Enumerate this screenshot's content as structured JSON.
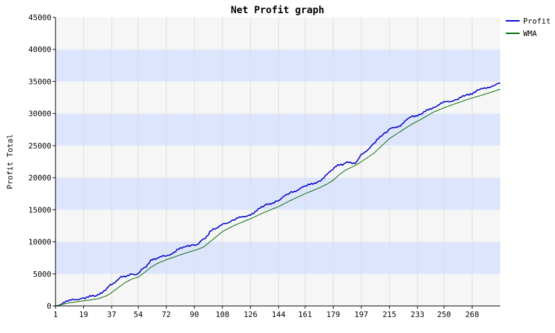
{
  "chart_data": {
    "type": "line",
    "title": "Net Profit graph",
    "xlabel": "",
    "ylabel": "Profit Total",
    "xlim": [
      1,
      286
    ],
    "ylim": [
      0,
      45000
    ],
    "x_ticks": [
      "1",
      "19",
      "37",
      "54",
      "72",
      "90",
      "108",
      "126",
      "144",
      "161",
      "179",
      "197",
      "215",
      "233",
      "250",
      "268"
    ],
    "y_ticks": [
      "0",
      "5000",
      "10000",
      "15000",
      "20000",
      "25000",
      "30000",
      "35000",
      "40000",
      "45000"
    ],
    "grid": true,
    "legend_position": "top-right",
    "series": [
      {
        "name": "Profit",
        "color": "#0000cc",
        "x": [
          1,
          10,
          19,
          28,
          34,
          37,
          42,
          46,
          50,
          54,
          58,
          62,
          66,
          72,
          78,
          85,
          88,
          92,
          96,
          100,
          104,
          108,
          116,
          126,
          135,
          144,
          152,
          161,
          170,
          175,
          179,
          183,
          187,
          193,
          197,
          205,
          212,
          215,
          222,
          229,
          236,
          243,
          250,
          258,
          265,
          272,
          280,
          286
        ],
        "values": [
          0,
          800,
          1300,
          1600,
          2800,
          3400,
          4300,
          4700,
          4900,
          5000,
          6000,
          7000,
          7500,
          7800,
          8500,
          9500,
          9400,
          9600,
          10400,
          11500,
          12200,
          12700,
          13500,
          14300,
          15600,
          16500,
          17700,
          18600,
          19500,
          20400,
          21500,
          22000,
          22300,
          22300,
          23500,
          25300,
          27000,
          27500,
          28200,
          29500,
          30000,
          31000,
          31700,
          32200,
          32900,
          33600,
          34300,
          34700
        ]
      },
      {
        "name": "WMA",
        "color": "#006600",
        "x": [
          1,
          10,
          19,
          28,
          34,
          37,
          42,
          46,
          50,
          54,
          58,
          62,
          66,
          72,
          78,
          85,
          88,
          92,
          96,
          100,
          104,
          108,
          116,
          126,
          135,
          144,
          152,
          161,
          170,
          175,
          179,
          183,
          187,
          193,
          197,
          205,
          212,
          215,
          222,
          229,
          236,
          243,
          250,
          258,
          265,
          272,
          280,
          286
        ],
        "values": [
          0,
          500,
          800,
          1100,
          1600,
          2100,
          3000,
          3700,
          4200,
          4500,
          5200,
          6000,
          6600,
          7200,
          7700,
          8300,
          8500,
          8800,
          9200,
          10000,
          10800,
          11600,
          12600,
          13600,
          14600,
          15500,
          16500,
          17500,
          18400,
          19000,
          19600,
          20500,
          21200,
          21900,
          22500,
          23800,
          25400,
          26100,
          27200,
          28300,
          29200,
          30200,
          30900,
          31600,
          32200,
          32700,
          33300,
          33800
        ]
      }
    ]
  }
}
